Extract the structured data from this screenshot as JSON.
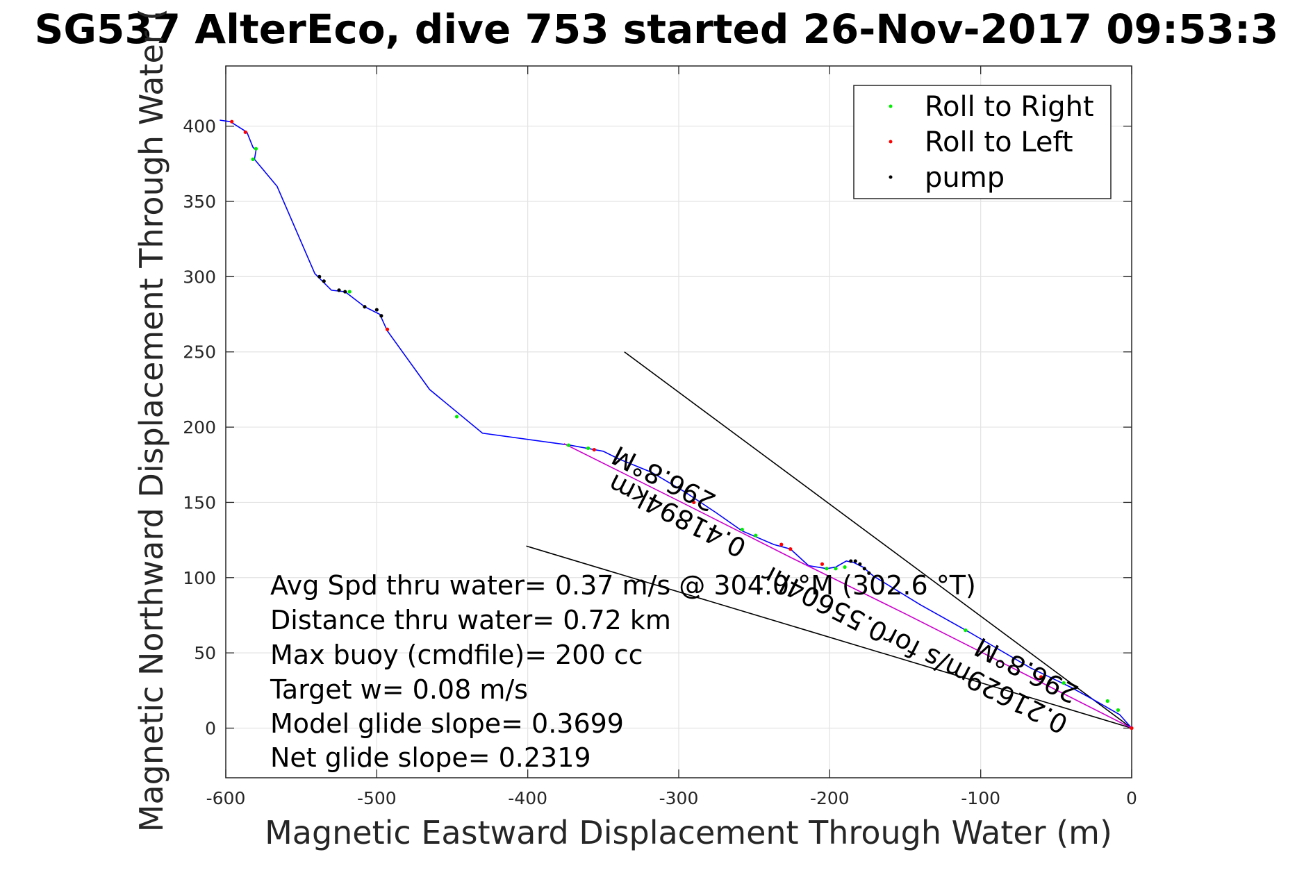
{
  "chart_data": {
    "type": "line",
    "title": "SG537 AlterEco, dive 753 started 26-Nov-2017 09:53:3",
    "xlabel": "Magnetic Eastward Displacement Through Water (m)",
    "ylabel": "Magnetic Northward Displacement Through Water (",
    "xlim": [
      -600,
      0
    ],
    "ylim": [
      -33,
      440
    ],
    "xticks": [
      -600,
      -500,
      -400,
      -300,
      -200,
      -100,
      0
    ],
    "xtick_labels": [
      "-600",
      "-500",
      "-400",
      "-300",
      "-200",
      "-100",
      "0"
    ],
    "yticks": [
      0,
      50,
      100,
      150,
      200,
      250,
      300,
      350,
      400
    ],
    "ytick_labels": [
      "0",
      "50",
      "100",
      "150",
      "200",
      "250",
      "300",
      "350",
      "400"
    ],
    "grid": true,
    "legend_position": "top-right",
    "legend": [
      {
        "label": "Roll to Right",
        "color": "#00ee00"
      },
      {
        "label": "Roll to Left",
        "color": "#ff0000"
      },
      {
        "label": "pump",
        "color": "#000000"
      }
    ],
    "series": [
      {
        "line_color": "#0000ff",
        "x": [
          -604,
          -597,
          -586,
          -582,
          -580,
          -581,
          -566,
          -541,
          -536,
          -530,
          -521,
          -508,
          -498,
          -493,
          -465,
          -430,
          -372,
          -350,
          -340,
          -318,
          -296,
          -275,
          -258,
          -237,
          -226,
          -214,
          -202,
          -196,
          -189,
          -184,
          -178,
          -171,
          -140,
          -108,
          -67,
          -40,
          -22,
          -8,
          0
        ],
        "y": [
          404,
          403,
          396,
          386,
          384,
          378,
          360,
          302,
          297,
          291,
          290,
          280,
          275,
          264,
          225,
          196,
          188,
          184,
          179,
          170,
          157,
          143,
          131,
          122,
          119,
          108,
          106,
          107,
          111,
          110,
          107,
          101,
          82,
          64,
          40,
          27,
          17,
          9,
          0
        ]
      },
      {
        "line_color": "#cc00cc",
        "x": [
          -376,
          -300,
          -225,
          -150,
          -75,
          0
        ],
        "y": [
          189,
          151,
          113,
          76,
          38,
          0
        ]
      }
    ],
    "marker_series": [
      {
        "name": "Roll to Right",
        "color": "#00ee00",
        "x": [
          -580,
          -582,
          -518,
          -447,
          -373,
          -360,
          -258,
          -249,
          -202,
          -196,
          -190,
          -110,
          -45,
          -16,
          -9
        ],
        "y": [
          385,
          378,
          290,
          207,
          188,
          186,
          132,
          128,
          106,
          106,
          107,
          65,
          30,
          18,
          12
        ]
      },
      {
        "name": "Roll to Left",
        "color": "#ff0000",
        "x": [
          -596,
          -587,
          -493,
          -356,
          -290,
          -232,
          -226,
          -205,
          -60,
          0
        ],
        "y": [
          403,
          396,
          265,
          185,
          150,
          122,
          119,
          109,
          34,
          0
        ]
      },
      {
        "name": "pump",
        "color": "#000000",
        "x": [
          -538,
          -535,
          -525,
          -521,
          -508,
          -500,
          -497,
          -186,
          -183,
          -180,
          -177,
          -174
        ],
        "y": [
          300,
          297,
          291,
          290,
          280,
          278,
          274,
          111,
          111,
          109,
          106,
          103
        ]
      }
    ],
    "reference_lines": [
      {
        "color": "#000000",
        "x": [
          -336,
          0
        ],
        "y": [
          250,
          0
        ]
      },
      {
        "color": "#000000",
        "x": [
          -401,
          0
        ],
        "y": [
          121,
          0
        ]
      }
    ],
    "rotated_labels": [
      {
        "text": "296.8°M",
        "angle": 207
      },
      {
        "text": "0.41894km",
        "angle": 207
      },
      {
        "text": "0.21629m/s for0.55604hr",
        "angle": 207
      },
      {
        "text": "296.8°M",
        "angle": 207
      }
    ],
    "annotations": [
      "Avg Spd thru water=  0.37 m/s @ 304.0 °M (302.6 °T)",
      "Distance thru water=  0.72 km",
      "Max buoy (cmdfile)= 200 cc",
      "Target w= 0.08 m/s",
      "Model glide slope= 0.3699",
      "Net glide slope= 0.2319"
    ]
  }
}
